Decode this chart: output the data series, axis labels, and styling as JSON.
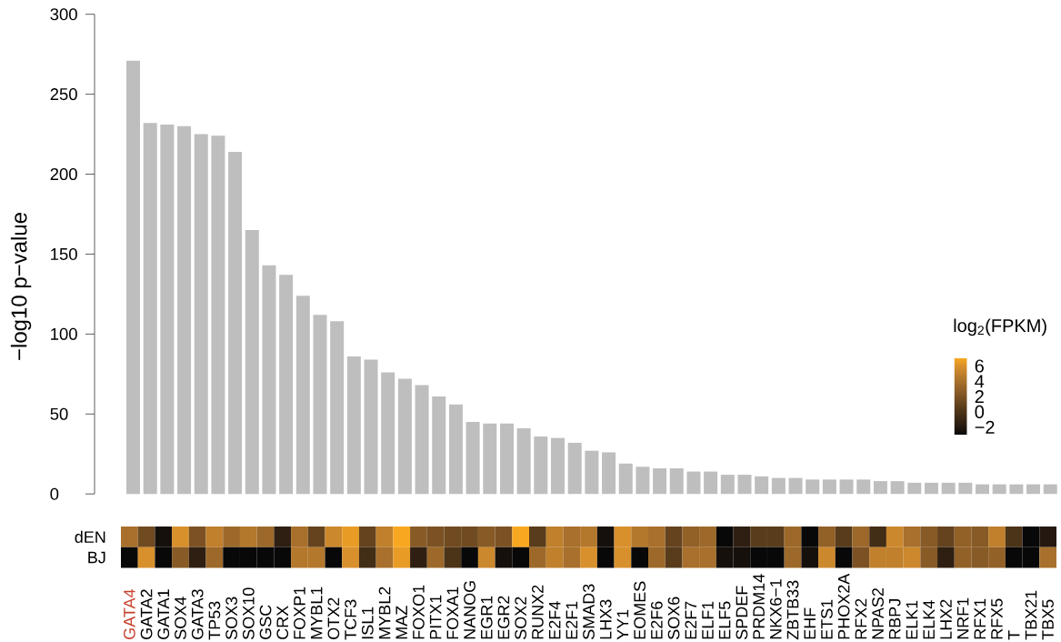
{
  "chart_data": [
    {
      "type": "bar",
      "ylabel": "−log10 p−value",
      "categories": [
        null,
        null,
        null,
        null,
        null,
        null,
        null,
        null,
        null,
        null,
        null,
        null,
        null,
        null,
        null,
        null,
        null,
        null,
        null,
        null,
        null,
        null,
        null,
        null,
        null,
        null,
        null,
        null,
        null,
        null,
        null,
        null,
        null,
        null,
        null,
        null,
        null,
        null,
        null,
        null,
        null,
        null,
        null,
        null,
        null,
        null,
        null,
        null,
        null,
        null,
        null,
        null,
        null,
        null,
        null
      ],
      "values": [
        271,
        232,
        231,
        230,
        225,
        224,
        214,
        165,
        143,
        137,
        124,
        112,
        108,
        86,
        84,
        76,
        72,
        68,
        61,
        56,
        45,
        44,
        44,
        41,
        36,
        35,
        32,
        27,
        26,
        19,
        17,
        16,
        16,
        14,
        14,
        12,
        12,
        11,
        10,
        10,
        9,
        9,
        9,
        9,
        8,
        8,
        7,
        7,
        7,
        7,
        6,
        6,
        6,
        6,
        6
      ],
      "color": "#bebebe",
      "ylim": [
        0,
        300
      ],
      "yticks": [
        0,
        50,
        100,
        150,
        200,
        250,
        300
      ],
      "tick_labels": "y"
    },
    {
      "type": "heatmap",
      "categories": [
        "GATA4",
        "GATA2",
        "GATA1",
        "SOX4",
        "GATA3",
        "TP53",
        "SOX3",
        "SOX10",
        "GSC",
        "CRX",
        "FOXP1",
        "MYBL1",
        "OTX2",
        "TCF3",
        "ISL1",
        "MYBL2",
        "MAZ",
        "FOXO1",
        "PITX1",
        "FOXA1",
        "NANOG",
        "EGR1",
        "EGR2",
        "SOX2",
        "RUNX2",
        "E2F4",
        "E2F1",
        "SMAD3",
        "LHX3",
        "YY1",
        "EOMES",
        "E2F6",
        "SOX6",
        "E2F7",
        "ELF1",
        "ELF5",
        "SPDEF",
        "PRDM14",
        "NKX6−1",
        "ZBTB33",
        "EHF",
        "ETS1",
        "PHOX2A",
        "RFX2",
        "NPAS2",
        "RBPJ",
        "ELK1",
        "ELK4",
        "LHX2",
        "NRF1",
        "RFX1",
        "RFX5",
        "T",
        "TBX21",
        "TBX5"
      ],
      "y_categories": [
        "dEN",
        "BJ"
      ],
      "cells": [
        [
          4,
          1.5,
          -2.5,
          6,
          2,
          5,
          3.5,
          4.5,
          3.5,
          -1.5,
          4,
          1,
          5.5,
          6.5,
          1,
          5,
          7,
          2.5,
          2,
          1.5,
          1.5,
          2.5,
          2,
          7,
          0.5,
          5,
          4,
          4.5,
          -2.5,
          6,
          4.5,
          4,
          1,
          3,
          3.5,
          -3,
          -1.5,
          0.5,
          0.5,
          3.5,
          -3,
          3,
          0.5,
          3.5,
          -0.5,
          5.5,
          4,
          2.5,
          1,
          3,
          2.5,
          5,
          0,
          -3,
          -2
        ],
        [
          -3,
          6,
          -3,
          2.5,
          -1.5,
          3.5,
          -3,
          -3,
          -3,
          -3,
          4.5,
          4.5,
          -3,
          6,
          -0.5,
          4,
          6.5,
          -1.5,
          3.5,
          0,
          -3,
          5.5,
          -2.5,
          -3,
          3.5,
          5,
          4,
          6,
          -3,
          6,
          -3,
          3.5,
          0.5,
          4,
          4,
          -2.5,
          -2.5,
          -3,
          -3,
          3.5,
          -2.5,
          5.5,
          -3,
          2,
          5,
          5,
          5.5,
          2.5,
          -1.5,
          3,
          2.5,
          3,
          -3,
          -3,
          4
        ]
      ],
      "clabel": "log$_{2}$(FPKM)",
      "clim": [
        -3,
        7
      ],
      "cticks": [
        {
          "value": -2,
          "label": "−2"
        },
        0,
        2,
        4,
        6
      ]
    }
  ]
}
